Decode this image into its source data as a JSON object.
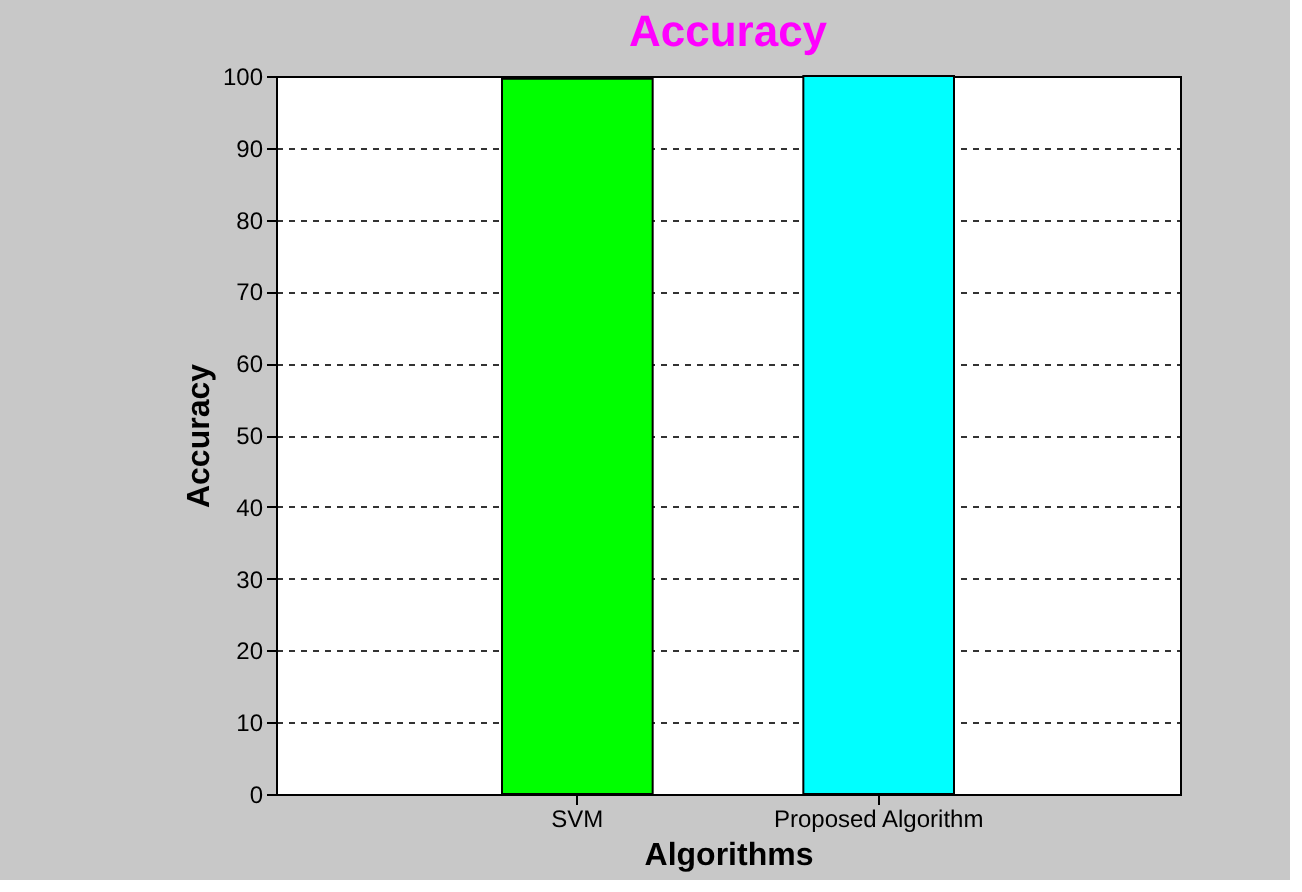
{
  "chart_data": {
    "type": "bar",
    "title": "Accuracy",
    "xlabel": "Algorithms",
    "ylabel": "Accuracy",
    "categories": [
      "SVM",
      "Proposed Algorithm"
    ],
    "values": [
      99.6,
      100
    ],
    "colors": [
      "#00ff00",
      "#00ffff"
    ],
    "ylim": [
      0,
      100
    ],
    "yticks": [
      0,
      10,
      20,
      30,
      40,
      50,
      60,
      70,
      80,
      90,
      100
    ],
    "grid": "y"
  }
}
